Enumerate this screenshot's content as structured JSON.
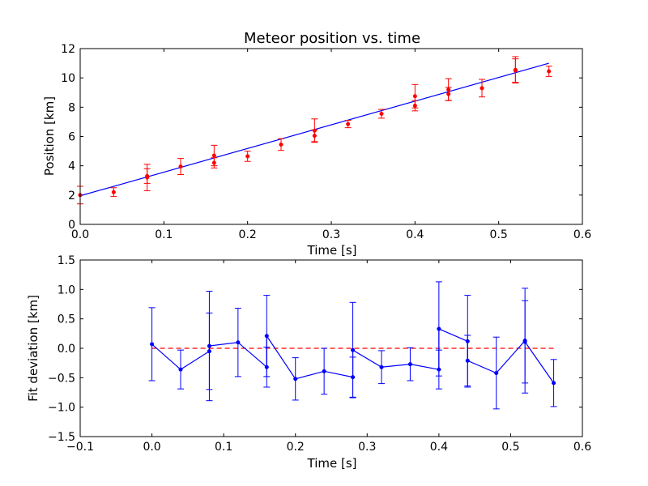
{
  "chart_data": [
    {
      "type": "scatter",
      "title": "Meteor position vs. time",
      "xlabel": "Time [s]",
      "ylabel": "Position [km]",
      "xlim": [
        0.0,
        0.6
      ],
      "ylim": [
        0,
        12
      ],
      "xticks": [
        0.0,
        0.1,
        0.2,
        0.3,
        0.4,
        0.5,
        0.6
      ],
      "xtick_labels": [
        "0.0",
        "0.1",
        "0.2",
        "0.3",
        "0.4",
        "0.5",
        "0.6"
      ],
      "yticks": [
        0,
        2,
        4,
        6,
        8,
        10,
        12
      ],
      "ytick_labels": [
        "0",
        "2",
        "4",
        "6",
        "8",
        "10",
        "12"
      ],
      "grid": false,
      "legend": "none",
      "measurements": {
        "color": "#ff0000",
        "points": [
          {
            "x": 0.0,
            "y": 2.0,
            "err": 0.6
          },
          {
            "x": 0.04,
            "y": 2.2,
            "err": 0.3
          },
          {
            "x": 0.08,
            "y": 3.2,
            "err": 0.9
          },
          {
            "x": 0.08,
            "y": 3.3,
            "err": 0.5
          },
          {
            "x": 0.12,
            "y": 3.95,
            "err": 0.55
          },
          {
            "x": 0.16,
            "y": 4.7,
            "err": 0.7
          },
          {
            "x": 0.16,
            "y": 4.2,
            "err": 0.35
          },
          {
            "x": 0.2,
            "y": 4.65,
            "err": 0.35
          },
          {
            "x": 0.24,
            "y": 5.45,
            "err": 0.4
          },
          {
            "x": 0.28,
            "y": 6.05,
            "err": 0.4
          },
          {
            "x": 0.28,
            "y": 6.4,
            "err": 0.8
          },
          {
            "x": 0.32,
            "y": 6.85,
            "err": 0.25
          },
          {
            "x": 0.36,
            "y": 7.55,
            "err": 0.3
          },
          {
            "x": 0.4,
            "y": 8.75,
            "err": 0.8
          },
          {
            "x": 0.4,
            "y": 8.1,
            "err": 0.35
          },
          {
            "x": 0.44,
            "y": 9.2,
            "err": 0.75
          },
          {
            "x": 0.44,
            "y": 8.9,
            "err": 0.45
          },
          {
            "x": 0.48,
            "y": 9.3,
            "err": 0.6
          },
          {
            "x": 0.52,
            "y": 10.5,
            "err": 0.8
          },
          {
            "x": 0.52,
            "y": 10.55,
            "err": 0.9
          },
          {
            "x": 0.56,
            "y": 10.45,
            "err": 0.35
          }
        ]
      },
      "fit_line": {
        "color": "#0000ff",
        "points": [
          [
            0.0,
            1.95
          ],
          [
            0.56,
            11.0
          ]
        ]
      }
    },
    {
      "type": "line",
      "title": "",
      "xlabel": "Time [s]",
      "ylabel": "Fit deviation [km]",
      "xlim": [
        -0.1,
        0.6
      ],
      "ylim": [
        -1.5,
        1.5
      ],
      "xticks": [
        -0.1,
        0.0,
        0.1,
        0.2,
        0.3,
        0.4,
        0.5,
        0.6
      ],
      "xtick_labels": [
        "−0.1",
        "0.0",
        "0.1",
        "0.2",
        "0.3",
        "0.4",
        "0.5",
        "0.6"
      ],
      "yticks": [
        -1.5,
        -1.0,
        -0.5,
        0.0,
        0.5,
        1.0,
        1.5
      ],
      "ytick_labels": [
        "−1.5",
        "−1.0",
        "−0.5",
        "0.0",
        "0.5",
        "1.0",
        "1.5"
      ],
      "grid": false,
      "legend": "none",
      "deviations": {
        "color": "#0000ff",
        "points": [
          {
            "x": 0.0,
            "y": 0.07,
            "err": 0.62
          },
          {
            "x": 0.04,
            "y": -0.36,
            "err": 0.33
          },
          {
            "x": 0.08,
            "y": -0.05,
            "err": 0.65
          },
          {
            "x": 0.08,
            "y": 0.04,
            "err": 0.93
          },
          {
            "x": 0.12,
            "y": 0.1,
            "err": 0.58
          },
          {
            "x": 0.16,
            "y": -0.32,
            "err": 0.34
          },
          {
            "x": 0.16,
            "y": 0.21,
            "err": 0.69
          },
          {
            "x": 0.2,
            "y": -0.52,
            "err": 0.36
          },
          {
            "x": 0.24,
            "y": -0.39,
            "err": 0.39
          },
          {
            "x": 0.28,
            "y": -0.49,
            "err": 0.34
          },
          {
            "x": 0.28,
            "y": -0.03,
            "err": 0.81
          },
          {
            "x": 0.32,
            "y": -0.32,
            "err": 0.28
          },
          {
            "x": 0.36,
            "y": -0.27,
            "err": 0.28
          },
          {
            "x": 0.4,
            "y": -0.36,
            "err": 0.33
          },
          {
            "x": 0.4,
            "y": 0.33,
            "err": 0.8
          },
          {
            "x": 0.44,
            "y": 0.12,
            "err": 0.78
          },
          {
            "x": 0.44,
            "y": -0.21,
            "err": 0.43
          },
          {
            "x": 0.48,
            "y": -0.42,
            "err": 0.61
          },
          {
            "x": 0.52,
            "y": 0.13,
            "err": 0.89
          },
          {
            "x": 0.52,
            "y": 0.11,
            "err": 0.7
          },
          {
            "x": 0.56,
            "y": -0.59,
            "err": 0.4
          }
        ]
      },
      "zero_line": {
        "color": "#ff0000",
        "style": "dashed",
        "y": 0.0,
        "x_range": [
          0.0,
          0.56
        ]
      }
    }
  ]
}
